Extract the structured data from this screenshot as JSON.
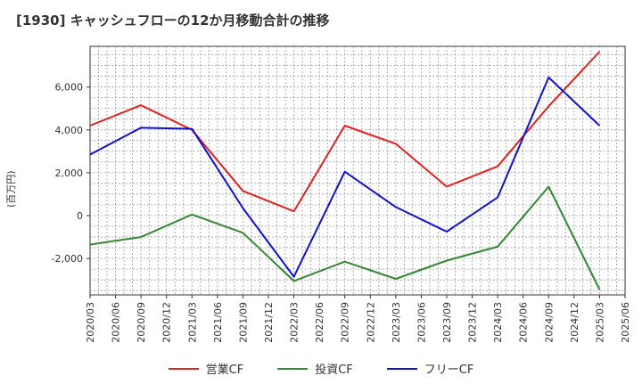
{
  "chart_data": {
    "type": "line",
    "title": "[1930]  キャッシュフローの12か月移動合計の推移",
    "ylabel": "(百万円)",
    "xlabel": "",
    "ylim": [
      -3700,
      7900
    ],
    "yticks": [
      -2000,
      0,
      2000,
      4000,
      6000
    ],
    "ytick_labels": [
      "-2,000",
      "0",
      "2,000",
      "4,000",
      "6,000"
    ],
    "categories": [
      "2020/03",
      "2020/06",
      "2020/09",
      "2020/12",
      "2021/03",
      "2021/06",
      "2021/09",
      "2021/12",
      "2022/03",
      "2022/06",
      "2022/09",
      "2022/12",
      "2023/03",
      "2023/06",
      "2023/09",
      "2023/12",
      "2024/03",
      "2024/06",
      "2024/09",
      "2024/12",
      "2025/03",
      "2025/06"
    ],
    "grid": true,
    "legend_position": "bottom",
    "series": [
      {
        "name": "営業CF",
        "color": "#dd2222",
        "x": [
          "2020/03",
          "2020/09",
          "2021/03",
          "2021/09",
          "2022/03",
          "2022/09",
          "2023/03",
          "2023/09",
          "2024/03",
          "2024/09",
          "2025/03"
        ],
        "values": [
          4200,
          5150,
          4000,
          1150,
          200,
          4200,
          3350,
          1350,
          2300,
          5100,
          7650
        ]
      },
      {
        "name": "投資CF",
        "color": "#338833",
        "x": [
          "2020/03",
          "2020/09",
          "2021/03",
          "2021/09",
          "2022/03",
          "2022/09",
          "2023/03",
          "2023/09",
          "2024/03",
          "2024/09",
          "2025/03"
        ],
        "values": [
          -1350,
          -1000,
          50,
          -800,
          -3050,
          -2150,
          -2950,
          -2100,
          -1450,
          1350,
          -3450
        ]
      },
      {
        "name": "フリーCF",
        "color": "#1111cc",
        "x": [
          "2020/03",
          "2020/09",
          "2021/03",
          "2021/09",
          "2022/03",
          "2022/09",
          "2023/03",
          "2023/09",
          "2024/03",
          "2024/09",
          "2025/03"
        ],
        "values": [
          2850,
          4100,
          4050,
          350,
          -2850,
          2050,
          400,
          -750,
          850,
          6450,
          4200
        ]
      }
    ]
  }
}
